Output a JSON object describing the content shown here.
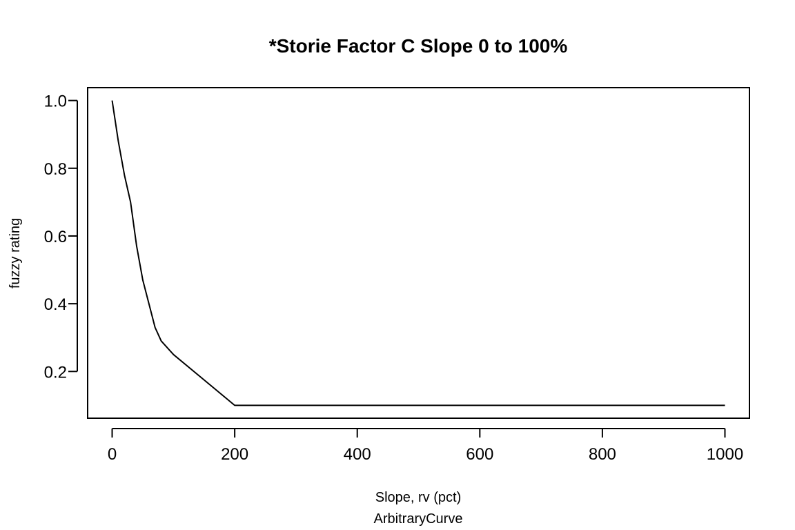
{
  "chart_data": {
    "type": "line",
    "title": "*Storie Factor C Slope 0 to 100%",
    "xlabel": "Slope, rv (pct)",
    "subtitle": "ArbitraryCurve",
    "ylabel": "fuzzy rating",
    "xlim": [
      -40,
      1040
    ],
    "ylim": [
      0.062,
      1.038
    ],
    "x_ticks": [
      0,
      200,
      400,
      600,
      800,
      1000
    ],
    "x_tick_labels": [
      "0",
      "200",
      "400",
      "600",
      "800",
      "1000"
    ],
    "y_ticks": [
      0.2,
      0.4,
      0.6,
      0.8,
      1.0
    ],
    "y_tick_labels": [
      "0.2",
      "0.4",
      "0.6",
      "0.8",
      "1.0"
    ],
    "grid": false,
    "legend": "none",
    "line_color": "#000000",
    "series": [
      {
        "x": [
          0,
          10,
          20,
          30,
          40,
          50,
          60,
          70,
          80,
          100,
          150,
          200,
          250,
          300,
          400,
          500,
          600,
          700,
          800,
          900,
          1000
        ],
        "y": [
          1.0,
          0.88,
          0.78,
          0.7,
          0.57,
          0.47,
          0.4,
          0.33,
          0.29,
          0.25,
          0.175,
          0.1,
          0.1,
          0.1,
          0.1,
          0.1,
          0.1,
          0.1,
          0.1,
          0.1,
          0.1
        ]
      }
    ]
  }
}
